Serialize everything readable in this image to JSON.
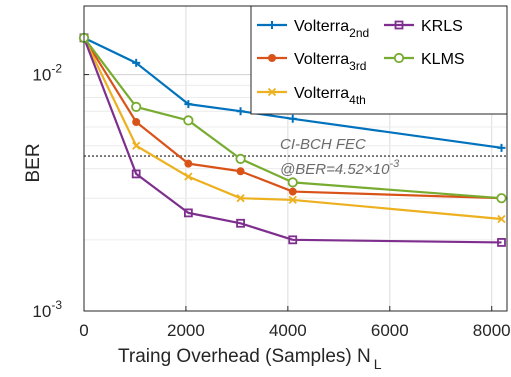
{
  "chart_data": {
    "type": "line",
    "xlabel": "Traing Overhead (Samples) N",
    "xlabel_sub": "L",
    "ylabel": "BER",
    "xlim": [
      0,
      8300
    ],
    "ylim": [
      0.001,
      0.0195
    ],
    "yscale": "log",
    "x_ticks": [
      0,
      2000,
      4000,
      6000,
      8000
    ],
    "x_tick_labels": [
      "0",
      "2000",
      "4000",
      "6000",
      "8000"
    ],
    "y_ticks": [
      {
        "value": 0.01,
        "base": "10",
        "exp": "-2"
      },
      {
        "value": 0.001,
        "base": "10",
        "exp": "-3"
      }
    ],
    "grid": true,
    "legend_position": "top-right",
    "x": [
      0,
      1024,
      2048,
      3072,
      4096,
      8192
    ],
    "series": [
      {
        "name": "Volterra",
        "sub": "2nd",
        "color": "#0072BD",
        "marker": "plus",
        "values": [
          0.0143,
          0.0112,
          0.0075,
          0.007,
          0.0065,
          0.0049
        ]
      },
      {
        "name": "Volterra",
        "sub": "3rd",
        "color": "#D95319",
        "marker": "circle-filled",
        "values": [
          0.0143,
          0.0063,
          0.0042,
          0.0039,
          0.0032,
          0.003
        ]
      },
      {
        "name": "Volterra",
        "sub": "4th",
        "color": "#EDB120",
        "marker": "x",
        "values": [
          0.0143,
          0.005,
          0.0037,
          0.003,
          0.00295,
          0.00245
        ]
      },
      {
        "name": "KRLS",
        "sub": "",
        "color": "#7E2F8E",
        "marker": "square",
        "values": [
          0.0143,
          0.0038,
          0.0026,
          0.00235,
          0.002,
          0.00195
        ]
      },
      {
        "name": "KLMS",
        "sub": "",
        "color": "#77AC30",
        "marker": "circle-open",
        "values": [
          0.0143,
          0.0073,
          0.0064,
          0.0044,
          0.0035,
          0.003
        ]
      }
    ],
    "threshold": {
      "value": 0.00452,
      "color": "#606060"
    },
    "annotations": {
      "line1": "CI-BCH FEC",
      "line2_prefix": "@BER=4.52×10",
      "line2_exp": "-3"
    }
  }
}
